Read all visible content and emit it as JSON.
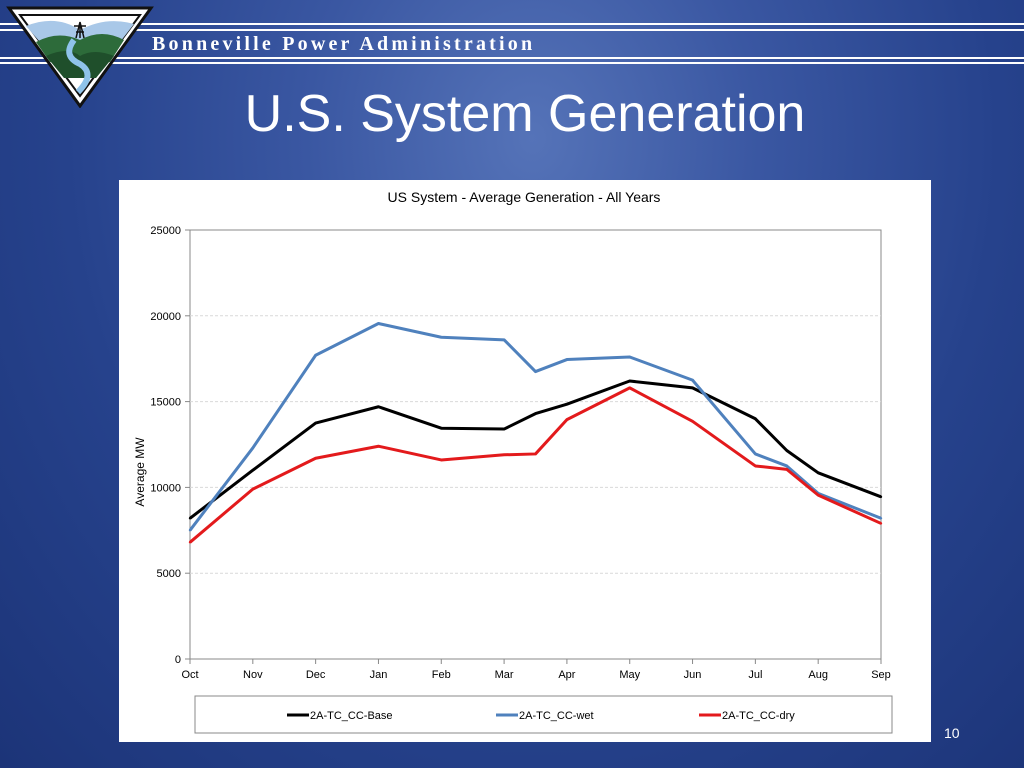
{
  "header": {
    "org_name": "Bonneville Power Administration",
    "slide_title": "U.S. System Generation",
    "page_number": "10"
  },
  "colors": {
    "background": "#2a4690",
    "base": "#000000",
    "wet": "#4f81bd",
    "dry": "#e31a1c"
  },
  "chart_data": {
    "type": "line",
    "title": "US System - Average Generation - All Years",
    "xlabel": "",
    "ylabel": "Average MW",
    "categories": [
      "Oct",
      "Nov",
      "Dec",
      "Jan",
      "Feb",
      "Mar",
      "Apr",
      "May",
      "Jun",
      "Jul",
      "Aug",
      "Sep"
    ],
    "x": [
      0,
      1,
      2,
      3,
      4,
      5,
      5.5,
      6,
      7,
      8,
      9,
      9.5,
      10,
      11
    ],
    "ylim": [
      0,
      25000
    ],
    "yticks": [
      0,
      5000,
      10000,
      15000,
      20000,
      25000
    ],
    "grid": true,
    "legend_position": "bottom",
    "series": [
      {
        "name": "2A-TC_CC-Base",
        "color": "#000000",
        "values": [
          8200,
          11000,
          13750,
          14700,
          13450,
          13400,
          14300,
          14850,
          16200,
          15800,
          14000,
          12150,
          10850,
          9450
        ]
      },
      {
        "name": "2A-TC_CC-wet",
        "color": "#4f81bd",
        "values": [
          7500,
          12300,
          17700,
          19550,
          18750,
          18600,
          16750,
          17450,
          17600,
          16250,
          11950,
          11250,
          9650,
          8200
        ]
      },
      {
        "name": "2A-TC_CC-dry",
        "color": "#e31a1c",
        "values": [
          6800,
          9900,
          11700,
          12400,
          11600,
          11900,
          11950,
          13950,
          15800,
          13850,
          11250,
          11050,
          9550,
          7900
        ]
      }
    ]
  }
}
